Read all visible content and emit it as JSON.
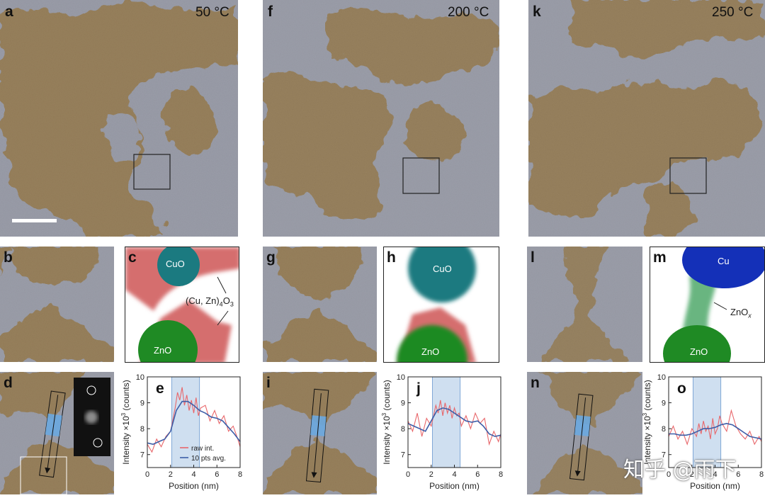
{
  "panels": {
    "a": {
      "letter": "a",
      "temperature": "50 °C"
    },
    "f": {
      "letter": "f",
      "temperature": "200 °C"
    },
    "k": {
      "letter": "k",
      "temperature": "250 °C"
    },
    "b": {
      "letter": "b"
    },
    "c": {
      "letter": "c",
      "labels": {
        "cuo": "CuO",
        "zno": "ZnO",
        "mixed_prefix": "(Cu, Zn)",
        "mixed_sub1": "4",
        "mixed_mid": "O",
        "mixed_sub2": "3"
      }
    },
    "g": {
      "letter": "g"
    },
    "h": {
      "letter": "h",
      "labels": {
        "cuo": "CuO",
        "zno": "ZnO"
      }
    },
    "l": {
      "letter": "l"
    },
    "m": {
      "letter": "m",
      "labels": {
        "cu": "Cu",
        "zno": "ZnO",
        "znox_prefix": "ZnO",
        "znox_sub": "x"
      }
    },
    "d": {
      "letter": "d"
    },
    "i": {
      "letter": "i"
    },
    "n": {
      "letter": "n"
    },
    "e": {
      "letter": "e"
    },
    "j": {
      "letter": "j"
    },
    "o": {
      "letter": "o"
    }
  },
  "colors": {
    "particle": "#a07a3c",
    "support": "#9fa3b4",
    "cuo": "#1b7a80",
    "zno": "#1f8a24",
    "mixed": "#d56e6e",
    "cu": "#1430b8",
    "znox": "#4fa96b",
    "raw": "#e8676b",
    "avg": "#3d5ea8",
    "band": "#cfdff0"
  },
  "axis_common": {
    "ylabel_main": "Intensity ×10",
    "ylabel_sup": "3",
    "ylabel_tail": " (counts)",
    "xlabel": "Position (nm)",
    "xticks": [
      0,
      2,
      4,
      6,
      8
    ],
    "yticks": [
      7,
      8,
      9,
      10
    ]
  },
  "watermark": "知乎 @雨下",
  "chart_data": [
    {
      "type": "line",
      "panel": "e",
      "xlabel": "Position (nm)",
      "ylabel": "Intensity ×10^3 (counts)",
      "xlim": [
        0,
        8
      ],
      "ylim": [
        6.5,
        10
      ],
      "highlight_band": [
        2.1,
        4.5
      ],
      "legend": [
        "raw int.",
        "10 pts avg."
      ],
      "legend_position": "bottom-right",
      "series": [
        {
          "name": "raw int.",
          "x": [
            0,
            0.4,
            0.8,
            1.2,
            1.6,
            2.0,
            2.4,
            2.6,
            2.8,
            3.0,
            3.2,
            3.4,
            3.6,
            3.8,
            4.0,
            4.2,
            4.4,
            4.6,
            5.0,
            5.4,
            5.8,
            6.2,
            6.6,
            7.0,
            7.4,
            7.8,
            8.0
          ],
          "y": [
            7.4,
            7.1,
            7.6,
            7.3,
            7.7,
            7.9,
            8.8,
            9.4,
            9.1,
            9.6,
            8.9,
            9.3,
            8.7,
            9.1,
            8.6,
            9.2,
            8.5,
            8.8,
            8.9,
            8.3,
            8.7,
            8.2,
            8.5,
            7.9,
            8.1,
            7.6,
            7.3
          ]
        },
        {
          "name": "10 pts avg.",
          "x": [
            0,
            0.5,
            1.0,
            1.5,
            2.0,
            2.5,
            3.0,
            3.5,
            4.0,
            4.5,
            5.0,
            5.5,
            6.0,
            6.5,
            7.0,
            7.5,
            8.0
          ],
          "y": [
            7.45,
            7.4,
            7.5,
            7.6,
            7.9,
            8.7,
            9.05,
            9.05,
            8.9,
            8.7,
            8.6,
            8.45,
            8.4,
            8.3,
            8.05,
            7.8,
            7.5
          ]
        }
      ]
    },
    {
      "type": "line",
      "panel": "j",
      "xlabel": "Position (nm)",
      "ylabel": "Intensity ×10^3 (counts)",
      "xlim": [
        0,
        8
      ],
      "ylim": [
        6.5,
        10
      ],
      "highlight_band": [
        2.1,
        4.5
      ],
      "series": [
        {
          "name": "raw int.",
          "x": [
            0,
            0.4,
            0.8,
            1.2,
            1.6,
            2.0,
            2.4,
            2.6,
            2.8,
            3.0,
            3.2,
            3.4,
            3.6,
            3.8,
            4.0,
            4.2,
            4.4,
            4.6,
            5.0,
            5.4,
            5.8,
            6.2,
            6.6,
            7.0,
            7.4,
            7.8,
            8.0
          ],
          "y": [
            8.3,
            7.9,
            8.6,
            7.7,
            8.4,
            8.1,
            8.9,
            8.6,
            9.1,
            8.5,
            9.0,
            8.6,
            8.9,
            8.4,
            8.8,
            8.5,
            8.6,
            8.1,
            8.5,
            8.0,
            8.6,
            8.2,
            8.4,
            7.4,
            7.9,
            7.5,
            7.8
          ]
        },
        {
          "name": "10 pts avg.",
          "x": [
            0,
            0.5,
            1.0,
            1.5,
            2.0,
            2.5,
            3.0,
            3.5,
            4.0,
            4.5,
            5.0,
            5.5,
            6.0,
            6.5,
            7.0,
            7.5,
            8.0
          ],
          "y": [
            8.2,
            8.1,
            8.0,
            7.9,
            8.3,
            8.7,
            8.8,
            8.75,
            8.6,
            8.45,
            8.3,
            8.25,
            8.3,
            8.1,
            7.8,
            7.7,
            7.75
          ]
        }
      ]
    },
    {
      "type": "line",
      "panel": "o",
      "xlabel": "Position (nm)",
      "ylabel": "Intensity ×10^3 (counts)",
      "xlim": [
        0,
        8
      ],
      "ylim": [
        6.5,
        10
      ],
      "highlight_band": [
        2.1,
        4.5
      ],
      "series": [
        {
          "name": "raw int.",
          "x": [
            0,
            0.4,
            0.8,
            1.2,
            1.6,
            2.0,
            2.4,
            2.6,
            2.8,
            3.0,
            3.2,
            3.4,
            3.6,
            3.8,
            4.0,
            4.2,
            4.4,
            4.6,
            5.0,
            5.4,
            5.8,
            6.2,
            6.6,
            7.0,
            7.4,
            7.8,
            8.0
          ],
          "y": [
            7.7,
            8.1,
            7.6,
            7.9,
            7.4,
            8.0,
            7.7,
            8.2,
            7.8,
            8.3,
            7.9,
            8.1,
            7.6,
            8.4,
            7.8,
            8.0,
            8.5,
            8.2,
            7.9,
            8.7,
            8.1,
            7.8,
            7.6,
            7.9,
            7.4,
            7.7,
            7.5
          ]
        },
        {
          "name": "10 pts avg.",
          "x": [
            0,
            0.5,
            1.0,
            1.5,
            2.0,
            2.5,
            3.0,
            3.5,
            4.0,
            4.5,
            5.0,
            5.5,
            6.0,
            6.5,
            7.0,
            7.5,
            8.0
          ],
          "y": [
            7.8,
            7.8,
            7.75,
            7.75,
            7.8,
            7.9,
            8.0,
            8.0,
            8.05,
            8.15,
            8.2,
            8.15,
            8.0,
            7.85,
            7.7,
            7.65,
            7.6
          ]
        }
      ]
    }
  ]
}
